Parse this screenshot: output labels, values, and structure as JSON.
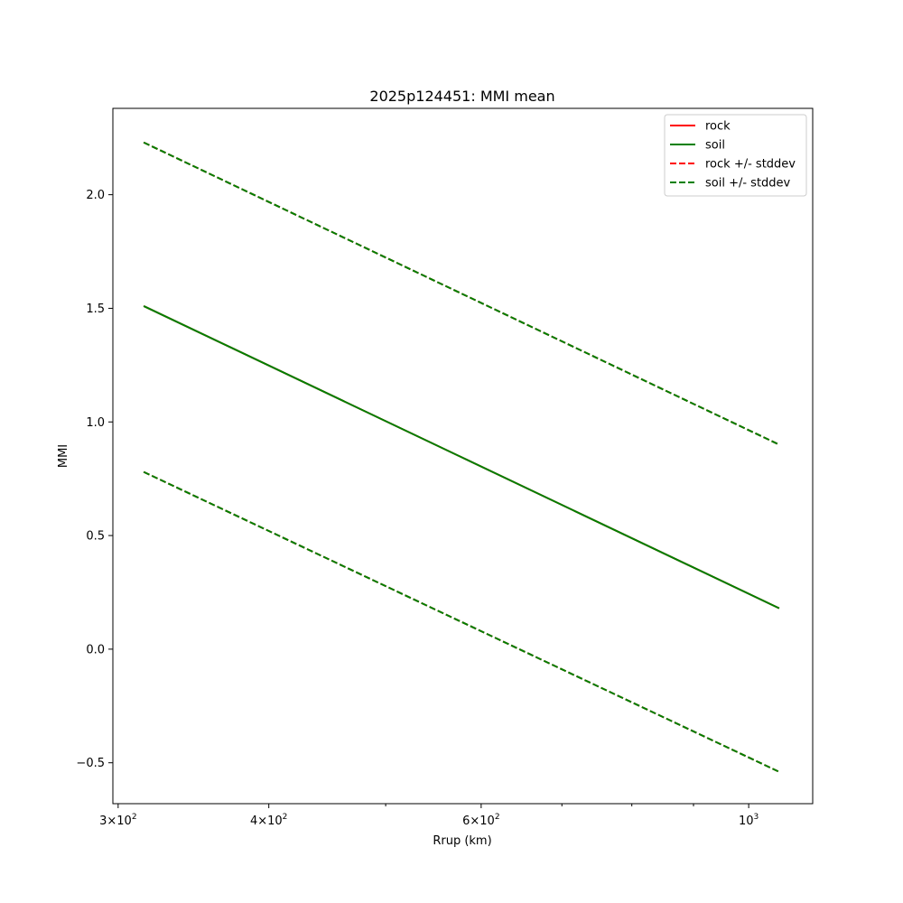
{
  "chart_data": {
    "type": "line",
    "title": "2025p124451: MMI mean",
    "xlabel": "Rrup (km)",
    "ylabel": "MMI",
    "xscale": "log",
    "xlim": [
      297,
      1130
    ],
    "ylim": [
      -0.68,
      2.38
    ],
    "grid": false,
    "legend_position": "top-right",
    "x_ticks": [
      {
        "value": 300,
        "mantissa": "3",
        "exp": "2"
      },
      {
        "value": 400,
        "mantissa": "4",
        "exp": "2"
      },
      {
        "value": 600,
        "mantissa": "6",
        "exp": "2"
      },
      {
        "value": 1000,
        "mantissa": "10",
        "exp": "3"
      }
    ],
    "x_minor_ticks": [
      500,
      700,
      800,
      900
    ],
    "y_ticks": [
      -0.5,
      0.0,
      0.5,
      1.0,
      1.5,
      2.0
    ],
    "y_tick_labels": [
      "−0.5",
      "0.0",
      "0.5",
      "1.0",
      "1.5",
      "2.0"
    ],
    "series": [
      {
        "name": "rock",
        "color": "#ff0000",
        "style": "solid",
        "x": [
          315,
          1060
        ],
        "y": [
          1.51,
          0.18
        ]
      },
      {
        "name": "soil",
        "color": "#008000",
        "style": "solid",
        "x": [
          315,
          1060
        ],
        "y": [
          1.51,
          0.18
        ]
      },
      {
        "name": "rock +/- stddev",
        "color": "#ff0000",
        "style": "dashed",
        "x": [
          315,
          1060
        ],
        "y": [
          2.23,
          0.9
        ],
        "lower": [
          0.78,
          -0.54
        ]
      },
      {
        "name": "soil +/- stddev",
        "color": "#008000",
        "style": "dashed",
        "x": [
          315,
          1060
        ],
        "y": [
          2.23,
          0.9
        ],
        "lower": [
          0.78,
          -0.54
        ]
      }
    ]
  }
}
